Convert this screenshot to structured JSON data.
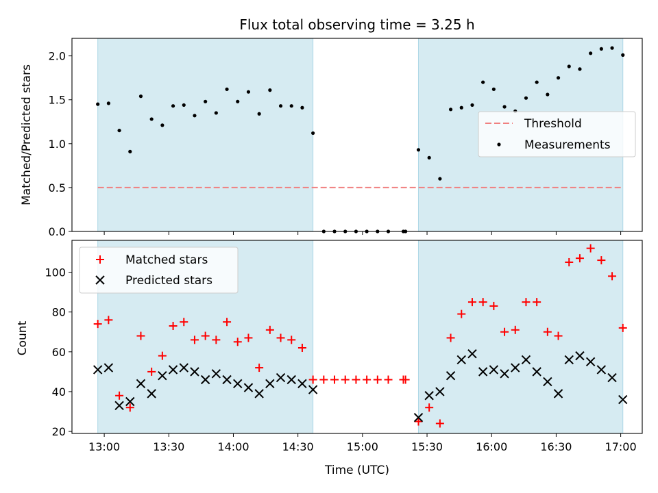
{
  "chart_data": [
    {
      "type": "scatter",
      "title": "Flux total observing time = 3.25 h",
      "xlabel": "",
      "ylabel": "Matched/Predicted stars",
      "ylim": [
        0,
        2.2
      ],
      "y_ticks": [
        "0.0",
        "0.5",
        "1.0",
        "1.5",
        "2.0"
      ],
      "threshold": {
        "name": "Threshold",
        "value": 0.5,
        "color": "#f08080",
        "style": "dashed"
      },
      "measurements": {
        "name": "Measurements",
        "color": "#000000",
        "times": [
          "12:57",
          "13:02",
          "13:07",
          "13:12",
          "13:17",
          "13:22",
          "13:27",
          "13:32",
          "13:37",
          "13:42",
          "13:47",
          "13:52",
          "13:57",
          "14:02",
          "14:07",
          "14:12",
          "14:17",
          "14:22",
          "14:27",
          "14:32",
          "14:37",
          "14:42",
          "14:47",
          "14:52",
          "14:57",
          "15:02",
          "15:07",
          "15:12",
          "15:19",
          "15:20",
          "15:26",
          "15:31",
          "15:36",
          "15:41",
          "15:46",
          "15:51",
          "15:56",
          "16:01",
          "16:06",
          "16:11",
          "16:16",
          "16:21",
          "16:26",
          "16:31",
          "16:36",
          "16:41",
          "16:46",
          "16:51",
          "16:56",
          "17:01"
        ],
        "values": [
          1.45,
          1.46,
          1.15,
          0.91,
          1.54,
          1.28,
          1.21,
          1.43,
          1.44,
          1.32,
          1.48,
          1.35,
          1.62,
          1.48,
          1.59,
          1.34,
          1.61,
          1.43,
          1.43,
          1.41,
          1.12,
          0.0,
          0.0,
          0.0,
          0.0,
          0.0,
          0.0,
          0.0,
          0.0,
          0.0,
          0.93,
          0.84,
          0.6,
          1.39,
          1.41,
          1.44,
          1.7,
          1.62,
          1.42,
          1.37,
          1.52,
          1.7,
          1.56,
          1.75,
          1.88,
          1.85,
          2.03,
          2.08,
          2.09,
          2.01
        ]
      },
      "shaded_intervals": [
        [
          "12:57",
          "14:37"
        ],
        [
          "15:26",
          "17:01"
        ]
      ],
      "shade_color": "#add8e6",
      "legend_position": "center-right"
    },
    {
      "type": "scatter",
      "title": "",
      "xlabel": "Time (UTC)",
      "ylabel": "Count",
      "xlim": [
        "12:45",
        "17:10"
      ],
      "x_ticks": [
        "13:00",
        "13:30",
        "14:00",
        "14:30",
        "15:00",
        "15:30",
        "16:00",
        "16:30",
        "17:00"
      ],
      "ylim": [
        19,
        116
      ],
      "y_ticks": [
        "20",
        "40",
        "60",
        "80",
        "100"
      ],
      "legend_position": "top-left",
      "series": [
        {
          "name": "Matched stars",
          "marker": "plus",
          "color": "#ff0000",
          "times": [
            "12:57",
            "13:02",
            "13:07",
            "13:12",
            "13:17",
            "13:22",
            "13:27",
            "13:32",
            "13:37",
            "13:42",
            "13:47",
            "13:52",
            "13:57",
            "14:02",
            "14:07",
            "14:12",
            "14:17",
            "14:22",
            "14:27",
            "14:32",
            "14:37",
            "14:42",
            "14:47",
            "14:52",
            "14:57",
            "15:02",
            "15:07",
            "15:12",
            "15:19",
            "15:20",
            "15:26",
            "15:31",
            "15:36",
            "15:41",
            "15:46",
            "15:51",
            "15:56",
            "16:01",
            "16:06",
            "16:11",
            "16:16",
            "16:21",
            "16:26",
            "16:31",
            "16:36",
            "16:41",
            "16:46",
            "16:51",
            "16:56",
            "17:01"
          ],
          "values": [
            74,
            76,
            38,
            32,
            68,
            50,
            58,
            73,
            75,
            66,
            68,
            66,
            75,
            65,
            67,
            52,
            71,
            67,
            66,
            62,
            46,
            46,
            46,
            46,
            46,
            46,
            46,
            46,
            46,
            46,
            25,
            32,
            24,
            67,
            79,
            85,
            85,
            83,
            70,
            71,
            85,
            85,
            70,
            68,
            105,
            107,
            112,
            106,
            98,
            72
          ]
        },
        {
          "name": "Predicted stars",
          "marker": "x",
          "color": "#000000",
          "times": [
            "12:57",
            "13:02",
            "13:07",
            "13:12",
            "13:17",
            "13:22",
            "13:27",
            "13:32",
            "13:37",
            "13:42",
            "13:47",
            "13:52",
            "13:57",
            "14:02",
            "14:07",
            "14:12",
            "14:17",
            "14:22",
            "14:27",
            "14:32",
            "14:37",
            "15:26",
            "15:31",
            "15:36",
            "15:41",
            "15:46",
            "15:51",
            "15:56",
            "16:01",
            "16:06",
            "16:11",
            "16:16",
            "16:21",
            "16:26",
            "16:31",
            "16:36",
            "16:41",
            "16:46",
            "16:51",
            "16:56",
            "17:01"
          ],
          "values": [
            51,
            52,
            33,
            35,
            44,
            39,
            48,
            51,
            52,
            50,
            46,
            49,
            46,
            44,
            42,
            39,
            44,
            47,
            46,
            44,
            41,
            27,
            38,
            40,
            48,
            56,
            59,
            50,
            51,
            49,
            52,
            56,
            50,
            45,
            39,
            56,
            58,
            55,
            51,
            47,
            36
          ]
        }
      ]
    }
  ]
}
